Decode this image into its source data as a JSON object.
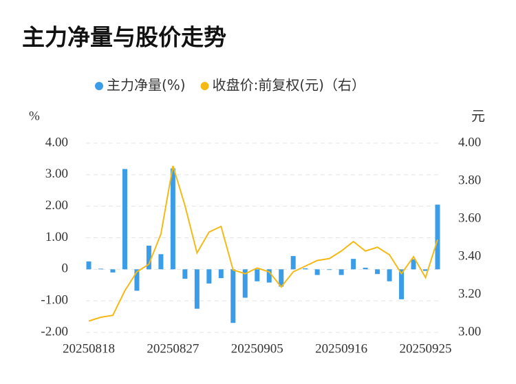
{
  "chart_data": {
    "type": "bar",
    "title": "主力净量与股价走势",
    "y_label": "%",
    "y2_label": "元",
    "categories": [
      "20250818",
      null,
      null,
      null,
      null,
      null,
      null,
      "20250827",
      null,
      null,
      null,
      null,
      null,
      null,
      "20250905",
      null,
      null,
      null,
      null,
      null,
      null,
      "20250916",
      null,
      null,
      null,
      null,
      null,
      null,
      "20250925",
      null
    ],
    "series": [
      {
        "name": "主力净量(%)",
        "type": "bar",
        "color": "#3b9ce8",
        "values": [
          0.25,
          0.02,
          -0.1,
          3.18,
          -0.68,
          0.75,
          0.48,
          3.2,
          -0.3,
          -1.25,
          -0.45,
          -0.28,
          -1.7,
          -0.9,
          -0.38,
          -0.42,
          -0.55,
          0.42,
          0.03,
          -0.18,
          -0.02,
          -0.18,
          0.33,
          0.05,
          -0.15,
          -0.38,
          -0.95,
          0.32,
          -0.05,
          2.05
        ]
      },
      {
        "name": "收盘价:前复权(元)（右）",
        "type": "line",
        "axis": "y2",
        "color": "#f5b915",
        "values": [
          3.06,
          3.08,
          3.09,
          3.22,
          3.32,
          3.36,
          3.52,
          3.88,
          3.67,
          3.42,
          3.53,
          3.56,
          3.33,
          3.31,
          3.34,
          3.32,
          3.24,
          3.32,
          3.35,
          3.38,
          3.39,
          3.43,
          3.48,
          3.43,
          3.45,
          3.41,
          3.31,
          3.4,
          3.29,
          3.49
        ]
      }
    ],
    "ylim": [
      -2,
      4
    ],
    "yticks": [
      {
        "value": -2,
        "label": "-2.00"
      },
      {
        "value": -1,
        "label": "-1.00"
      },
      0,
      {
        "value": 1,
        "label": "1.00"
      },
      {
        "value": 2,
        "label": "2.00"
      },
      {
        "value": 3,
        "label": "3.00"
      },
      {
        "value": 4,
        "label": "4.00"
      }
    ],
    "y2lim": [
      3,
      4
    ],
    "y2ticks": [
      {
        "value": 3,
        "label": "3.00"
      },
      {
        "value": 3.2,
        "label": "3.20"
      },
      {
        "value": 3.4,
        "label": "3.40"
      },
      {
        "value": 3.6,
        "label": "3.60"
      },
      {
        "value": 3.8,
        "label": "3.80"
      },
      {
        "value": 4,
        "label": "4.00"
      }
    ],
    "grid": true,
    "legend": "top"
  }
}
